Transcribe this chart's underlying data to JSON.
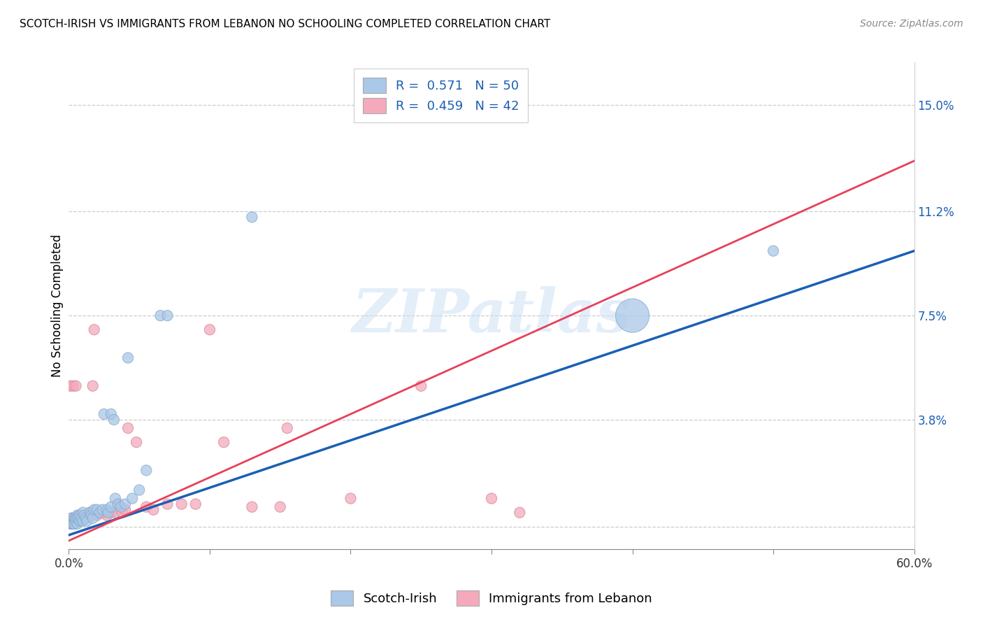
{
  "title": "SCOTCH-IRISH VS IMMIGRANTS FROM LEBANON NO SCHOOLING COMPLETED CORRELATION CHART",
  "source": "Source: ZipAtlas.com",
  "ylabel": "No Schooling Completed",
  "xlim": [
    0.0,
    0.6
  ],
  "ylim": [
    -0.008,
    0.165
  ],
  "xtick_vals": [
    0.0,
    0.1,
    0.2,
    0.3,
    0.4,
    0.5,
    0.6
  ],
  "xtick_labels": [
    "0.0%",
    "",
    "",
    "",
    "",
    "",
    "60.0%"
  ],
  "ytick_vals": [
    0.0,
    0.038,
    0.075,
    0.112,
    0.15
  ],
  "ytick_labels": [
    "",
    "3.8%",
    "7.5%",
    "11.2%",
    "15.0%"
  ],
  "scotch_R": 0.571,
  "scotch_N": 50,
  "lebanon_R": 0.459,
  "lebanon_N": 42,
  "scotch_color": "#aac8e8",
  "scotch_edge_color": "#88aacc",
  "lebanon_color": "#f4aabb",
  "lebanon_edge_color": "#d888a0",
  "scotch_line_color": "#1a5fb4",
  "lebanon_line_color": "#e8405a",
  "watermark": "ZIPatlas",
  "scotch_line_x0": 0.0,
  "scotch_line_y0": -0.003,
  "scotch_line_x1": 0.6,
  "scotch_line_y1": 0.098,
  "lebanon_line_x0": 0.0,
  "lebanon_line_y0": -0.005,
  "lebanon_line_x1": 0.6,
  "lebanon_line_y1": 0.13,
  "scotch_x": [
    0.001,
    0.001,
    0.002,
    0.002,
    0.003,
    0.003,
    0.003,
    0.004,
    0.004,
    0.004,
    0.005,
    0.005,
    0.006,
    0.006,
    0.006,
    0.007,
    0.008,
    0.008,
    0.009,
    0.01,
    0.01,
    0.011,
    0.012,
    0.013,
    0.015,
    0.016,
    0.017,
    0.018,
    0.02,
    0.022,
    0.024,
    0.025,
    0.027,
    0.028,
    0.03,
    0.03,
    0.032,
    0.033,
    0.035,
    0.037,
    0.04,
    0.042,
    0.045,
    0.05,
    0.055,
    0.065,
    0.07,
    0.13,
    0.4,
    0.5
  ],
  "scotch_y": [
    0.001,
    0.002,
    0.001,
    0.003,
    0.001,
    0.002,
    0.001,
    0.002,
    0.003,
    0.001,
    0.002,
    0.003,
    0.004,
    0.001,
    0.003,
    0.003,
    0.002,
    0.004,
    0.003,
    0.005,
    0.002,
    0.004,
    0.003,
    0.002,
    0.005,
    0.004,
    0.003,
    0.006,
    0.006,
    0.005,
    0.006,
    0.04,
    0.006,
    0.005,
    0.007,
    0.04,
    0.038,
    0.01,
    0.008,
    0.007,
    0.008,
    0.06,
    0.01,
    0.013,
    0.02,
    0.075,
    0.075,
    0.11,
    0.075,
    0.098
  ],
  "scotch_sizes": [
    120,
    120,
    120,
    120,
    120,
    120,
    120,
    120,
    120,
    120,
    120,
    120,
    120,
    120,
    120,
    120,
    120,
    120,
    120,
    120,
    120,
    120,
    120,
    120,
    120,
    120,
    120,
    120,
    120,
    120,
    120,
    120,
    120,
    120,
    120,
    120,
    120,
    120,
    120,
    120,
    120,
    120,
    120,
    120,
    120,
    120,
    120,
    120,
    1200,
    120
  ],
  "lebanon_x": [
    0.001,
    0.001,
    0.002,
    0.002,
    0.003,
    0.003,
    0.004,
    0.005,
    0.005,
    0.006,
    0.007,
    0.008,
    0.01,
    0.012,
    0.015,
    0.017,
    0.018,
    0.02,
    0.022,
    0.025,
    0.027,
    0.03,
    0.033,
    0.035,
    0.038,
    0.04,
    0.042,
    0.048,
    0.055,
    0.06,
    0.07,
    0.08,
    0.09,
    0.1,
    0.11,
    0.13,
    0.15,
    0.155,
    0.2,
    0.25,
    0.3,
    0.32
  ],
  "lebanon_y": [
    0.05,
    0.001,
    0.001,
    0.003,
    0.002,
    0.05,
    0.001,
    0.003,
    0.05,
    0.002,
    0.004,
    0.003,
    0.003,
    0.003,
    0.005,
    0.05,
    0.07,
    0.004,
    0.005,
    0.005,
    0.004,
    0.005,
    0.005,
    0.008,
    0.005,
    0.006,
    0.035,
    0.03,
    0.007,
    0.006,
    0.008,
    0.008,
    0.008,
    0.07,
    0.03,
    0.007,
    0.007,
    0.035,
    0.01,
    0.05,
    0.01,
    0.005
  ],
  "lebanon_sizes": [
    120,
    120,
    120,
    120,
    120,
    120,
    120,
    120,
    120,
    120,
    120,
    120,
    120,
    120,
    120,
    120,
    120,
    120,
    120,
    120,
    120,
    120,
    120,
    120,
    120,
    120,
    120,
    120,
    120,
    120,
    120,
    120,
    120,
    120,
    120,
    120,
    120,
    120,
    120,
    120,
    120,
    120
  ]
}
